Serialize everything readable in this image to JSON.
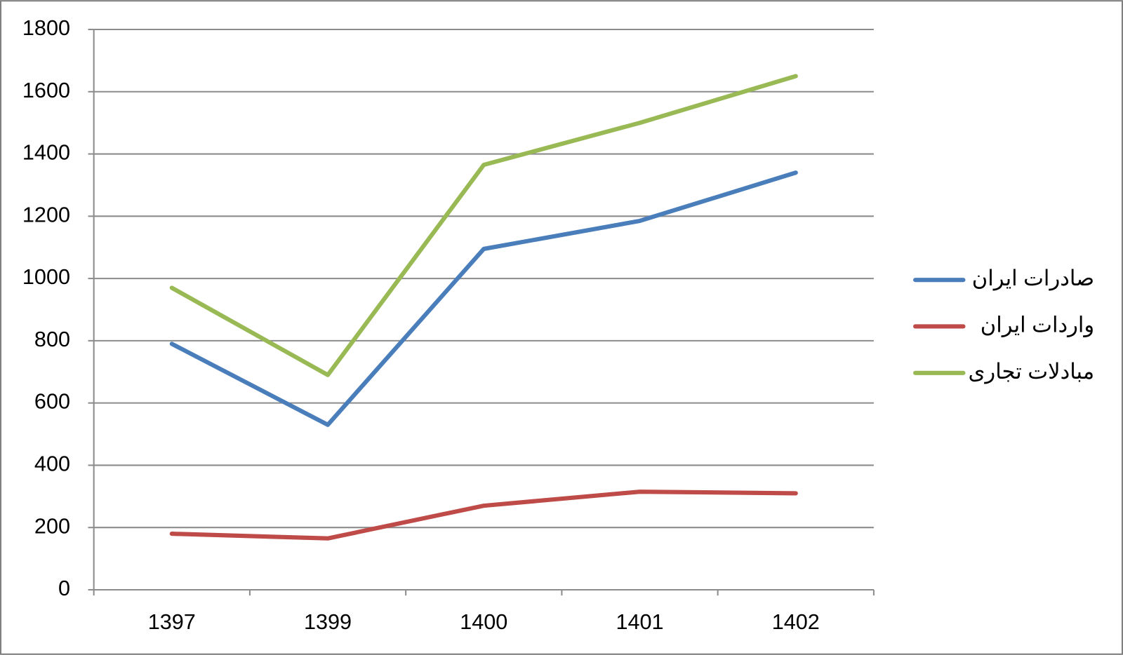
{
  "chart_data": {
    "type": "line",
    "categories": [
      "1397",
      "1399",
      "1400",
      "1401",
      "1402"
    ],
    "series": [
      {
        "name": "صادرات ایران",
        "color": "#4a7ebb",
        "values": [
          790,
          530,
          1095,
          1185,
          1340
        ]
      },
      {
        "name": "واردات ایران",
        "color": "#be4b48",
        "values": [
          180,
          165,
          270,
          315,
          310
        ]
      },
      {
        "name": "مبادلات تجاری",
        "color": "#98b954",
        "values": [
          970,
          690,
          1365,
          1500,
          1650
        ]
      }
    ],
    "ylim": [
      0,
      1800
    ],
    "yticks": [
      0,
      200,
      400,
      600,
      800,
      1000,
      1200,
      1400,
      1600,
      1800
    ],
    "grid": true,
    "legend": "right"
  }
}
